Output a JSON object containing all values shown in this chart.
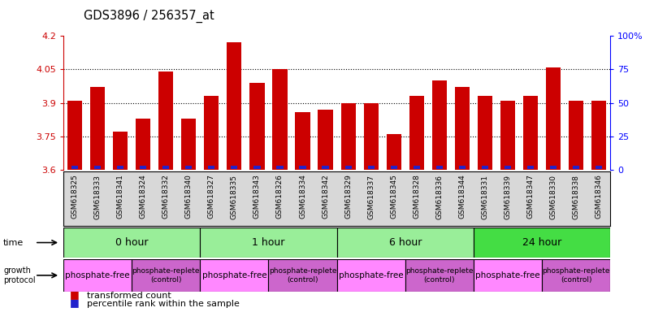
{
  "title": "GDS3896 / 256357_at",
  "samples": [
    "GSM618325",
    "GSM618333",
    "GSM618341",
    "GSM618324",
    "GSM618332",
    "GSM618340",
    "GSM618327",
    "GSM618335",
    "GSM618343",
    "GSM618326",
    "GSM618334",
    "GSM618342",
    "GSM618329",
    "GSM618337",
    "GSM618345",
    "GSM618328",
    "GSM618336",
    "GSM618344",
    "GSM618331",
    "GSM618339",
    "GSM618347",
    "GSM618330",
    "GSM618338",
    "GSM618346"
  ],
  "transformed_count": [
    3.91,
    3.97,
    3.77,
    3.83,
    4.04,
    3.83,
    3.93,
    4.17,
    3.99,
    4.05,
    3.86,
    3.87,
    3.9,
    3.9,
    3.76,
    3.93,
    4.0,
    3.97,
    3.93,
    3.91,
    3.93,
    4.06,
    3.91,
    3.91
  ],
  "percentile_pct": [
    7,
    9,
    5,
    6,
    8,
    6,
    7,
    11,
    8,
    9,
    7,
    7,
    8,
    8,
    5,
    8,
    9,
    8,
    8,
    7,
    8,
    10,
    7,
    7
  ],
  "ymin": 3.6,
  "ymax": 4.2,
  "yticks": [
    3.6,
    3.75,
    3.9,
    4.05,
    4.2
  ],
  "ytick_labels": [
    "3.6",
    "3.75",
    "3.9",
    "4.05",
    "4.2"
  ],
  "right_yticks": [
    0,
    25,
    50,
    75,
    100
  ],
  "right_ytick_labels": [
    "0",
    "25",
    "50",
    "75",
    "100%"
  ],
  "bar_color": "#cc0000",
  "percentile_color": "#2222cc",
  "grid_lines": [
    3.75,
    3.9,
    4.05
  ],
  "time_groups": [
    {
      "label": "0 hour",
      "start": 0,
      "end": 6,
      "color": "#99ee99"
    },
    {
      "label": "1 hour",
      "start": 6,
      "end": 12,
      "color": "#99ee99"
    },
    {
      "label": "6 hour",
      "start": 12,
      "end": 18,
      "color": "#99ee99"
    },
    {
      "label": "24 hour",
      "start": 18,
      "end": 24,
      "color": "#44dd44"
    }
  ],
  "protocol_groups": [
    {
      "label": "phosphate-free",
      "start": 0,
      "end": 3,
      "color": "#ff88ff",
      "fontsize": 7.5
    },
    {
      "label": "phosphate-replete\n(control)",
      "start": 3,
      "end": 6,
      "color": "#cc66cc",
      "fontsize": 6.5
    },
    {
      "label": "phosphate-free",
      "start": 6,
      "end": 9,
      "color": "#ff88ff",
      "fontsize": 7.5
    },
    {
      "label": "phosphate-replete\n(control)",
      "start": 9,
      "end": 12,
      "color": "#cc66cc",
      "fontsize": 6.5
    },
    {
      "label": "phosphate-free",
      "start": 12,
      "end": 15,
      "color": "#ff88ff",
      "fontsize": 7.5
    },
    {
      "label": "phosphate-replete\n(control)",
      "start": 15,
      "end": 18,
      "color": "#cc66cc",
      "fontsize": 6.5
    },
    {
      "label": "phosphate-free",
      "start": 18,
      "end": 21,
      "color": "#ff88ff",
      "fontsize": 7.5
    },
    {
      "label": "phosphate-replete\n(control)",
      "start": 21,
      "end": 24,
      "color": "#cc66cc",
      "fontsize": 6.5
    }
  ],
  "xtick_bg_color": "#d8d8d8",
  "xtick_fontsize": 6.5,
  "bar_width": 0.65
}
